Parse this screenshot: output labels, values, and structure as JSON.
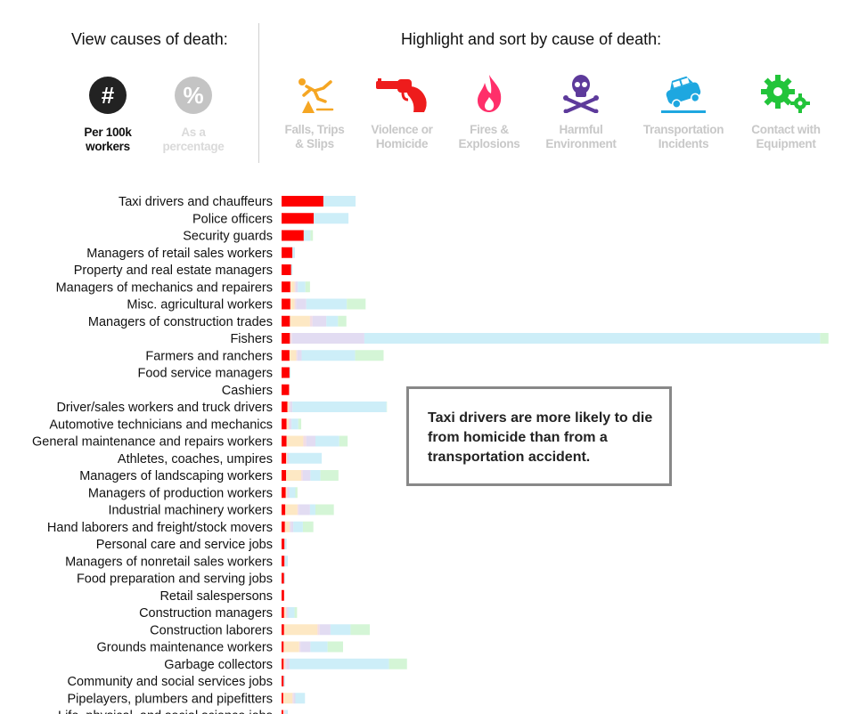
{
  "view_section": {
    "title": "View causes of death:",
    "buttons": [
      {
        "symbol": "#",
        "label_line1": "Per 100k",
        "label_line2": "workers",
        "active": true,
        "color": "#222222"
      },
      {
        "symbol": "%",
        "label_line1": "As a",
        "label_line2": "percentage",
        "active": false,
        "color": "#c4c4c4"
      }
    ]
  },
  "highlight_section": {
    "title": "Highlight and sort by cause of death:",
    "causes": [
      {
        "icon": "falling-person-icon",
        "label_line1": "Falls, Trips",
        "label_line2": "& Slips",
        "color": "#f5a623",
        "active": false
      },
      {
        "icon": "revolver-icon",
        "label_line1": "Violence or",
        "label_line2": "Homicide",
        "color": "#ee1c1c",
        "active": true
      },
      {
        "icon": "flame-icon",
        "label_line1": "Fires &",
        "label_line2": "Explosions",
        "color": "#ff2f6a",
        "active": false
      },
      {
        "icon": "skull-crossbones-icon",
        "label_line1": "Harmful",
        "label_line2": "Environment",
        "color": "#5d3a9b",
        "active": false
      },
      {
        "icon": "car-crash-icon",
        "label_line1": "Transportation",
        "label_line2": "Incidents",
        "color": "#1ea7e0",
        "active": false
      },
      {
        "icon": "gears-icon",
        "label_line1": "Contact with",
        "label_line2": "Equipment",
        "color": "#22c43a",
        "active": false
      }
    ]
  },
  "annotation": "Taxi drivers are more likely to die from homicide than from a transportation accident.",
  "colors": {
    "homicide": "#ff0000",
    "falls": "#fde8c4",
    "fires": "#f2dde5",
    "environment": "#e2dcf2",
    "transportation": "#cdeef8",
    "equipment": "#d4f5d6"
  },
  "chart_data": {
    "type": "bar",
    "stacked": true,
    "orientation": "horizontal",
    "units": "deaths per 100k workers",
    "x_max": 130,
    "categories": [
      "Taxi drivers and chauffeurs",
      "Police officers",
      "Security guards",
      "Managers of retail sales workers",
      "Property and real estate managers",
      "Managers of mechanics and repairers",
      "Misc. agricultural workers",
      "Managers of construction trades",
      "Fishers",
      "Farmers and ranchers",
      "Food service managers",
      "Cashiers",
      "Driver/sales workers and truck drivers",
      "Automotive technicians and mechanics",
      "General maintenance and repairs workers",
      "Athletes, coaches, umpires",
      "Managers of landscaping workers",
      "Managers of production workers",
      "Industrial machinery workers",
      "Hand laborers and freight/stock movers",
      "Personal care and service jobs",
      "Managers of nonretail sales workers",
      "Food preparation and serving jobs",
      "Retail salespersons",
      "Construction managers",
      "Construction laborers",
      "Grounds maintenance workers",
      "Garbage collectors",
      "Community and social services jobs",
      "Pipelayers, plumbers and pipefitters",
      "Life, physical, and social science jobs"
    ],
    "series": [
      {
        "name": "Violence or Homicide",
        "values": [
          10.0,
          7.7,
          5.3,
          2.6,
          2.3,
          2.1,
          2.1,
          2.0,
          2.0,
          1.9,
          1.9,
          1.8,
          1.4,
          1.2,
          1.2,
          1.1,
          1.1,
          1.0,
          0.9,
          0.8,
          0.7,
          0.7,
          0.6,
          0.6,
          0.6,
          0.6,
          0.5,
          0.5,
          0.5,
          0.4,
          0.4
        ]
      },
      {
        "name": "Falls, Trips & Slips",
        "values": [
          0.0,
          0.0,
          0.0,
          0.0,
          0.0,
          1.0,
          1.0,
          4.8,
          0.0,
          1.6,
          0.0,
          0.0,
          0.3,
          0.5,
          4.0,
          0.2,
          3.6,
          0.2,
          2.9,
          1.1,
          0.0,
          0.0,
          0.0,
          0.0,
          0.4,
          8.0,
          3.7,
          0.2,
          0.0,
          2.2,
          0.2
        ]
      },
      {
        "name": "Fires & Explosions",
        "values": [
          0.0,
          0.0,
          0.0,
          0.0,
          0.0,
          0.3,
          0.4,
          0.6,
          0.5,
          0.3,
          0.0,
          0.0,
          0.4,
          0.3,
          0.7,
          0.0,
          0.4,
          0.2,
          0.3,
          0.3,
          0.0,
          0.0,
          0.0,
          0.0,
          0.3,
          0.5,
          0.3,
          0.4,
          0.0,
          0.3,
          0.0
        ]
      },
      {
        "name": "Harmful Environment",
        "values": [
          0.0,
          0.0,
          0.0,
          0.0,
          0.0,
          0.5,
          2.4,
          3.3,
          17.3,
          1.0,
          0.0,
          0.0,
          0.5,
          0.4,
          2.2,
          0.4,
          1.8,
          0.5,
          2.7,
          0.6,
          0.0,
          0.0,
          0.0,
          0.0,
          0.3,
          2.6,
          2.4,
          0.8,
          0.0,
          0.4,
          0.3
        ]
      },
      {
        "name": "Transportation Incidents",
        "values": [
          7.7,
          8.3,
          1.6,
          0.6,
          0.3,
          1.8,
          9.7,
          2.8,
          109.0,
          12.8,
          0.2,
          0.0,
          22.5,
          1.6,
          5.7,
          7.9,
          2.4,
          1.4,
          1.3,
          2.3,
          0.5,
          0.8,
          0.2,
          0.0,
          1.5,
          4.8,
          4.1,
          23.8,
          0.3,
          2.3,
          0.6
        ]
      },
      {
        "name": "Contact with Equipment",
        "values": [
          0.0,
          0.0,
          0.6,
          0.0,
          0.0,
          1.1,
          4.5,
          2.0,
          2.0,
          6.8,
          0.0,
          0.0,
          0.1,
          0.7,
          2.0,
          0.0,
          4.3,
          0.5,
          4.4,
          2.5,
          0.0,
          0.0,
          0.0,
          0.0,
          0.6,
          4.6,
          3.7,
          4.3,
          0.0,
          0.0,
          0.0
        ]
      }
    ]
  }
}
